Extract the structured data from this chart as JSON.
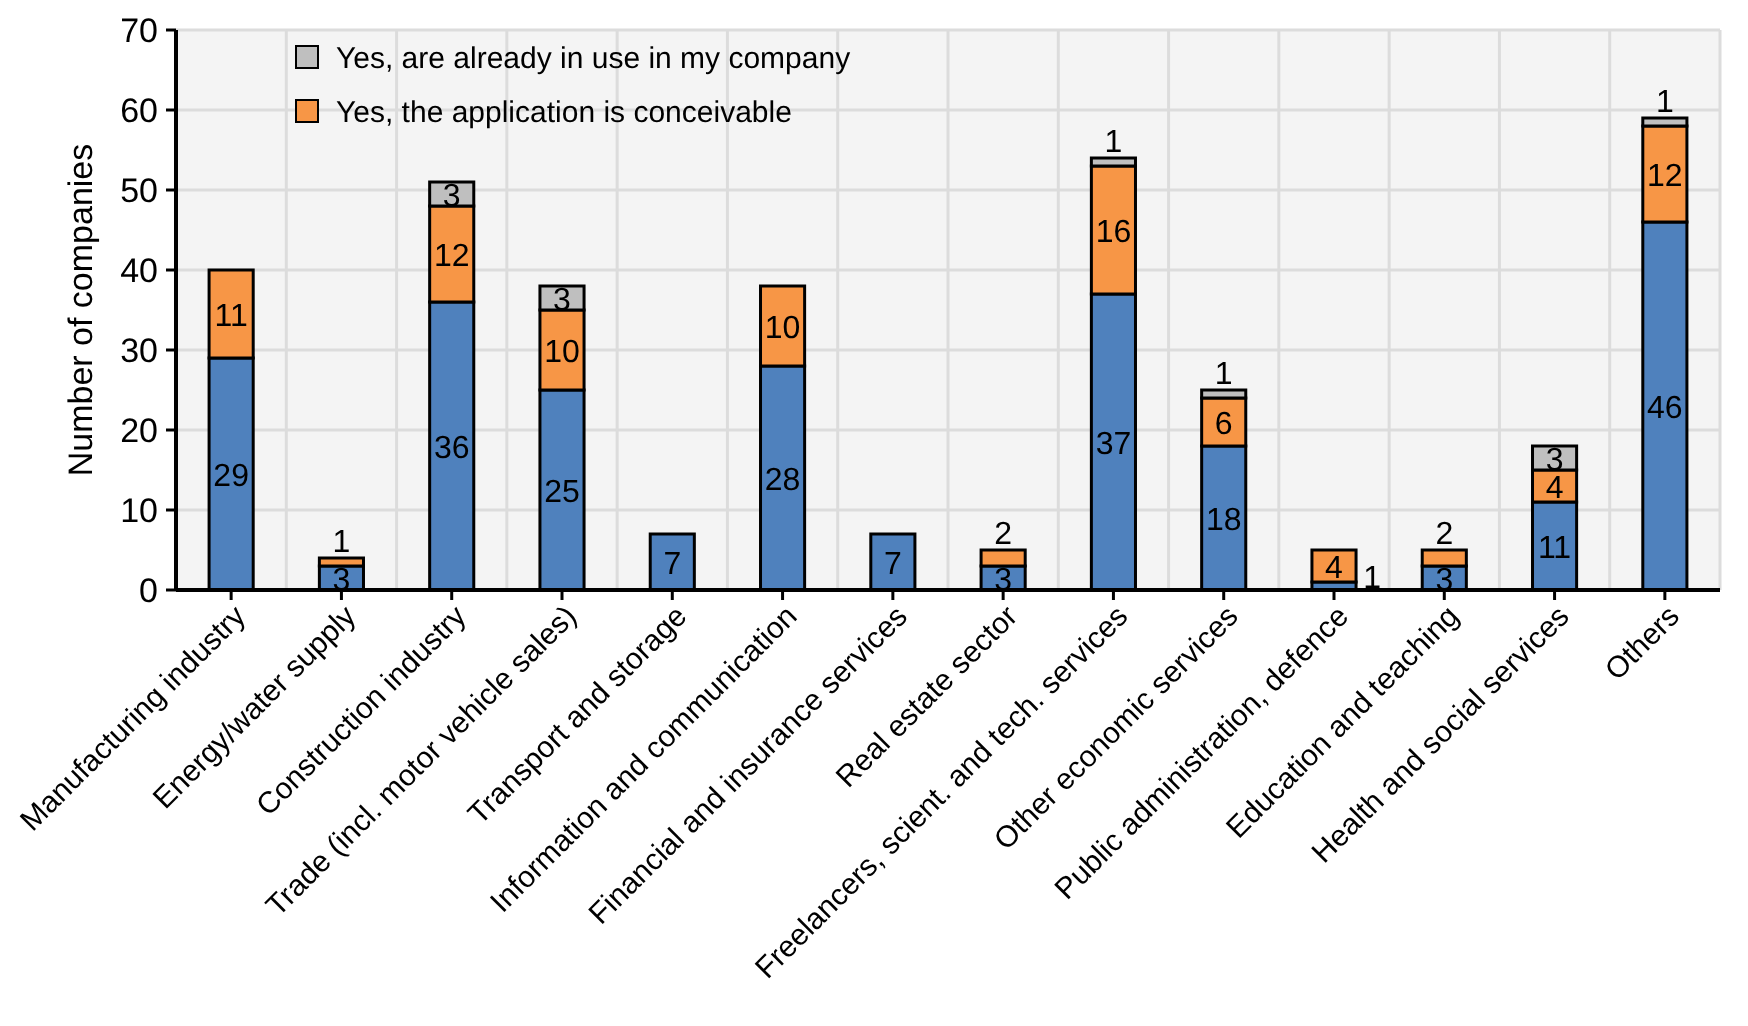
{
  "chart_data": {
    "type": "bar",
    "stacked": true,
    "ylabel": "Number of companies",
    "categories": [
      "Manufacturing industry",
      "Energy/water supply",
      "Construction industry",
      "Trade (incl. motor vehicle sales)",
      "Transport and storage",
      "Information and communication",
      "Financial and insurance services",
      "Real estate sector",
      "Freelancers, scient. and tech. services",
      "Other economic services",
      "Public administration, defence",
      "Education and teaching",
      "Health and social services",
      "Others"
    ],
    "series": [
      {
        "color": "#4f81bd",
        "values": [
          29,
          3,
          36,
          25,
          7,
          28,
          7,
          3,
          37,
          18,
          1,
          3,
          11,
          46
        ]
      },
      {
        "name": "Yes, the application is conceivable",
        "color": "#f79646",
        "values": [
          11,
          1,
          12,
          10,
          null,
          10,
          null,
          2,
          16,
          6,
          4,
          2,
          4,
          12
        ]
      },
      {
        "name": "Yes, are already in use in my company",
        "color": "#bfbfbf",
        "values": [
          null,
          null,
          3,
          3,
          null,
          null,
          null,
          null,
          1,
          1,
          null,
          null,
          3,
          1
        ]
      }
    ],
    "data_labels": true,
    "ylim": [
      0,
      70
    ],
    "yticks": [
      0,
      10,
      20,
      30,
      40,
      50,
      60,
      70
    ],
    "grid": true,
    "legend": "top left"
  }
}
